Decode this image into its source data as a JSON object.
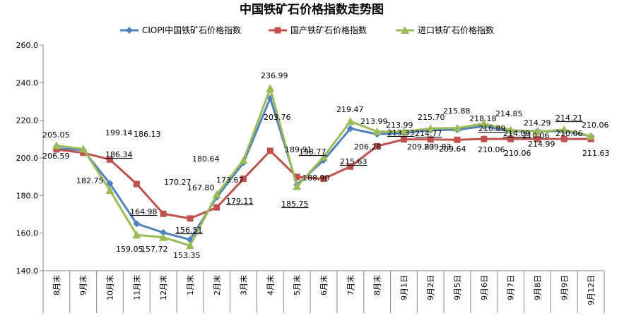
{
  "chart_data": {
    "type": "line",
    "title": "中国铁矿石价格指数走势图",
    "xlabel": "",
    "ylabel": "",
    "ylim": [
      140,
      260
    ],
    "yticks": [
      "140.0",
      "160.0",
      "180.0",
      "200.0",
      "220.0",
      "240.0",
      "260.0"
    ],
    "grid": false,
    "legend_position": "top",
    "categories": [
      "8月末",
      "9月末",
      "10月末",
      "11月末",
      "12月末",
      "1月末",
      "2月末",
      "3月末",
      "4月末",
      "5月末",
      "6月末",
      "7月末",
      "8月末",
      "9月1日",
      "9月2日",
      "9月5日",
      "9月6日",
      "9月7日",
      "9月8日",
      "9月9日",
      "9月12日"
    ],
    "series": [
      {
        "name": "CIOPI中国铁矿石价格指数",
        "color": "#4F81BD",
        "marker": "diamond",
        "values": [
          205.05,
          204.2,
          186.34,
          164.98,
          160.3,
          156.51,
          179.11,
          197.5,
          231.8,
          185.75,
          198.77,
          215.63,
          212.6,
          213.33,
          214.77,
          215.0,
          216.89,
          214.09,
          214.29,
          214.21,
          211.63
        ]
      },
      {
        "name": "国产铁矿石价格指数",
        "color": "#C0504D",
        "marker": "square",
        "values": [
          204.5,
          202.7,
          199.14,
          186.13,
          170.27,
          167.8,
          173.67,
          188.9,
          203.76,
          189.91,
          188.9,
          195.4,
          206.28,
          209.83,
          209.83,
          209.64,
          210.06,
          210.06,
          210.06,
          210.06,
          210.06
        ]
      },
      {
        "name": "进口铁矿石价格指数",
        "color": "#9BBB59",
        "marker": "triangle",
        "values": [
          206.59,
          204.8,
          182.75,
          159.05,
          157.72,
          153.35,
          180.64,
          198.8,
          236.99,
          184.8,
          200.5,
          219.47,
          213.99,
          213.99,
          215.7,
          215.88,
          218.18,
          214.85,
          214.0,
          214.99,
          211.63
        ]
      }
    ],
    "labels": [
      {
        "text": "205.05"
      },
      {
        "text": "206.59"
      },
      {
        "text": "199.14"
      },
      {
        "text": "186.34",
        "underline": true
      },
      {
        "text": "182.75"
      },
      {
        "text": "186.13"
      },
      {
        "text": "164.98",
        "underline": true
      },
      {
        "text": "159.05"
      },
      {
        "text": "157.72"
      },
      {
        "text": "170.27"
      },
      {
        "text": "167.80"
      },
      {
        "text": "156.51",
        "underline": true
      },
      {
        "text": "153.35"
      },
      {
        "text": "180.64"
      },
      {
        "text": "179.11",
        "underline": true
      },
      {
        "text": "173.67"
      },
      {
        "text": "236.99"
      },
      {
        "text": "203.76"
      },
      {
        "text": "189.91"
      },
      {
        "text": "185.75",
        "underline": true
      },
      {
        "text": "198.77",
        "underline": true
      },
      {
        "text": "188.90"
      },
      {
        "text": "219.47"
      },
      {
        "text": "215.63",
        "underline": true
      },
      {
        "text": "213.99"
      },
      {
        "text": "206.28"
      },
      {
        "text": "213.99"
      },
      {
        "text": "213.33",
        "underline": true
      },
      {
        "text": "209.83"
      },
      {
        "text": "215.70"
      },
      {
        "text": "214.77",
        "underline": true
      },
      {
        "text": "209.83"
      },
      {
        "text": "215.88"
      },
      {
        "text": "209.64"
      },
      {
        "text": "218.18"
      },
      {
        "text": "216.89",
        "underline": true
      },
      {
        "text": "210.06"
      },
      {
        "text": "214.85"
      },
      {
        "text": "214.09",
        "underline": true
      },
      {
        "text": "210.06"
      },
      {
        "text": "214.29"
      },
      {
        "text": "210.06"
      },
      {
        "text": "214.99"
      },
      {
        "text": "214.21",
        "underline": true
      },
      {
        "text": "210.06"
      },
      {
        "text": "211.63"
      },
      {
        "text": "210.06"
      }
    ]
  }
}
